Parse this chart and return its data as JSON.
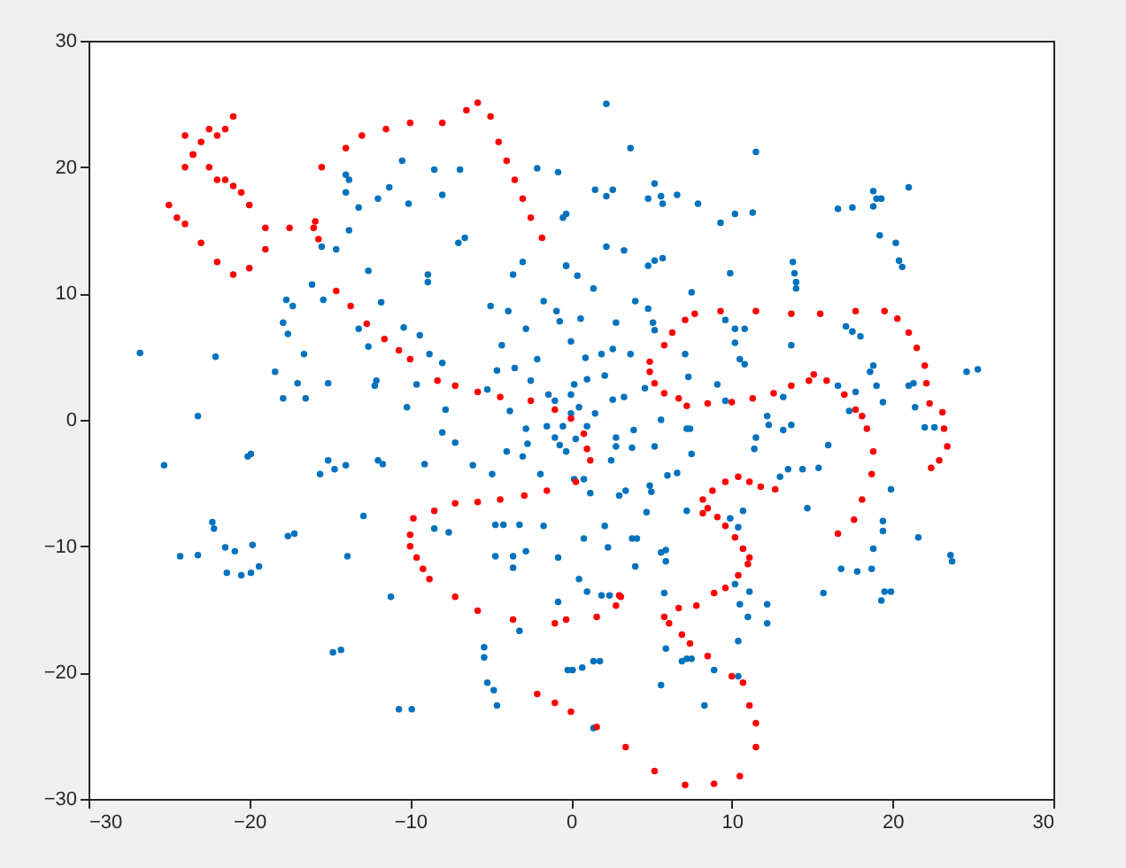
{
  "chart_data": {
    "type": "scatter",
    "xlim": [
      -30,
      30
    ],
    "ylim": [
      -30,
      30
    ],
    "xticks": [
      -30,
      -20,
      -10,
      0,
      10,
      20,
      30
    ],
    "yticks": [
      -30,
      -20,
      -10,
      0,
      10,
      20,
      30
    ],
    "grid": false,
    "marker": "circle",
    "series": [
      {
        "color": "#0072bd",
        "x": [
          -26.8,
          -25.3,
          -23.2,
          -22.1,
          -20.1,
          -19.9,
          -22.3,
          -22.2,
          -21.5,
          -24.3,
          -23.2,
          -20.9,
          -19.8,
          -21.4,
          -20.5,
          -19.9,
          -19.4,
          -17.6,
          -17.2,
          -15.6,
          -15.1,
          -14.7,
          -14,
          -12,
          -11.7,
          -12.9,
          -13.9,
          -11.2,
          -14.8,
          -14.3,
          -10.7,
          -9.9,
          -5.4,
          -5.4,
          -5.2,
          -4.8,
          -4.6,
          -9.1,
          -8,
          -7.2,
          -6.1,
          -4.9,
          -4,
          -3,
          -1.9,
          -4.7,
          -4.2,
          -3.2,
          -4.7,
          -3.6,
          -2.8,
          -1.7,
          -0.8,
          -0.8,
          -3.2,
          -8.5,
          -7.6,
          -3.6,
          -0.2,
          -14,
          -13.8,
          -14,
          -12,
          -11.3,
          -10.5,
          -8.5,
          -6.9,
          -8,
          -10.1,
          -13.2,
          -13.8,
          -15.5,
          -14.6,
          -12.6,
          -8.9,
          -8.9,
          -6.6,
          -7,
          -3,
          -3.6,
          -0.3,
          -2.1,
          -0.8,
          -0.5,
          -16.1,
          -17.7,
          -17.3,
          -17.9,
          -17.6,
          -16.6,
          -15.4,
          -18.4,
          -17,
          -16.5,
          -17.9,
          -15.1,
          -13.2,
          -12.6,
          -11.8,
          -10.4,
          -9.4,
          -8.8,
          -8,
          -12.1,
          -12.2,
          -10.2,
          -9.6,
          -7.8,
          -5,
          -3.9,
          -2.8,
          -4.3,
          -0.9,
          -0.7,
          -1.7,
          -2.1,
          -2.5,
          -1.4,
          -3.5,
          -4.6,
          -5.2,
          -3.8,
          2.2,
          3.7,
          11.5,
          1.5,
          2.2,
          2.6,
          5.2,
          4.8,
          5.6,
          5.7,
          6.6,
          7.9,
          9.3,
          10.2,
          11.3,
          16.6,
          17.5,
          18.8,
          19,
          19.3,
          18.8,
          21,
          19.2,
          20.2,
          20.4,
          20.6,
          13.8,
          13.9,
          14,
          14,
          2.2,
          3.3,
          0.4,
          4.8,
          5.2,
          5.7,
          1.4,
          7.5,
          9.9,
          4,
          4.8,
          2.8,
          5.1,
          5.2,
          0,
          0.6,
          9.6,
          10.2,
          10.8,
          10.2,
          10.5,
          10.8,
          13.7,
          17.1,
          17.5,
          18,
          18.8,
          18.6,
          19,
          21,
          21.3,
          24.6,
          25.3,
          21.4,
          19.4,
          16.6,
          17.7,
          0.9,
          1.9,
          2.6,
          3.7,
          7.1,
          7.3,
          0.2,
          1,
          2.1,
          3.3,
          2.6,
          4.6,
          9.1,
          9.6,
          13.2,
          12.2,
          17.3,
          -0.3,
          -0.3,
          7.2,
          7.4,
          12.3,
          13.2,
          13.7,
          11.5,
          11.4,
          16,
          22,
          22.6,
          7.5,
          13.5,
          14.4,
          15.4,
          13,
          19.9,
          14.7,
          19.4,
          19.4,
          18.8,
          21.6,
          23.6,
          23.7,
          16.8,
          17.8,
          18.7,
          15.7,
          19.5,
          19.9,
          19.3,
          6.6,
          6,
          4.9,
          5,
          3.4,
          3,
          4.7,
          7.2,
          9.9,
          10.7,
          10.4,
          3.8,
          4.1,
          5.6,
          5.9,
          5.9,
          4,
          0.5,
          1,
          1.9,
          2.4,
          5.8,
          10.2,
          11.1,
          10.5,
          12.2,
          11,
          12.2,
          10.4,
          5.9,
          6.9,
          7.2,
          7.5,
          8.9,
          10.4,
          5.6,
          8.3,
          1.4,
          1.8,
          0.7,
          0.1,
          1.4,
          2.1,
          2.3,
          0.8,
          2.8,
          2.8,
          3.8,
          5.2,
          2.5,
          3.9,
          5.6,
          0.8,
          0.2,
          1.2,
          0,
          -0.5,
          0.5,
          -1,
          1,
          0.3,
          -0.7,
          1.5,
          -1.5,
          0,
          -2.8,
          -1,
          -0.3,
          -2.7
        ],
        "values": [
          5.3,
          -3.6,
          0.3,
          5,
          -2.9,
          -2.7,
          -8.1,
          -8.6,
          -10.1,
          -10.8,
          -10.7,
          -10.4,
          -9.9,
          -12.1,
          -12.3,
          -12.1,
          -11.6,
          -9.2,
          -9,
          -4.3,
          -3.2,
          -3.9,
          -3.6,
          -3.2,
          -3.5,
          -7.6,
          -10.8,
          -14,
          -18.4,
          -18.2,
          -22.9,
          -22.9,
          -18,
          -18.8,
          -20.8,
          -21.4,
          -22.6,
          -3.5,
          -1,
          -1.8,
          -3.6,
          -4.3,
          -2.5,
          -2.9,
          -4.3,
          -8.3,
          -8.3,
          -8.3,
          -10.8,
          -10.8,
          -10.4,
          -8.4,
          -10.9,
          -14.4,
          -16.7,
          -8.6,
          -8.9,
          -11.7,
          -19.8,
          19.4,
          19,
          18,
          17.5,
          18.4,
          20.5,
          19.8,
          19.8,
          17.8,
          17.1,
          16.8,
          15,
          13.7,
          13.5,
          11.8,
          11.5,
          10.9,
          14.4,
          14,
          12.5,
          11.5,
          12.2,
          19.9,
          19.6,
          16,
          10.7,
          9.5,
          9,
          7.7,
          6.8,
          5.2,
          9.5,
          3.8,
          2.9,
          1.7,
          1.7,
          2.9,
          7.2,
          5.8,
          9.3,
          7.3,
          6.7,
          5.2,
          4.5,
          3.1,
          2.7,
          1,
          2.8,
          0.8,
          9,
          8.6,
          7.2,
          5.9,
          8.6,
          7.8,
          9.4,
          4.8,
          3.1,
          2,
          4.1,
          3.9,
          2.4,
          0.7,
          25,
          21.5,
          21.2,
          18.2,
          17.7,
          18.2,
          18.7,
          17.5,
          17.7,
          17.1,
          17.8,
          17.1,
          15.6,
          16.3,
          16.4,
          16.7,
          16.8,
          18.1,
          17.5,
          17.5,
          16.9,
          18.4,
          14.6,
          14,
          12.6,
          12.1,
          12.5,
          11.6,
          10.9,
          10.4,
          13.7,
          13.4,
          11.4,
          12.2,
          12.6,
          12.8,
          10.4,
          10.1,
          11.6,
          9.4,
          8.8,
          7.7,
          7.7,
          7.1,
          6.2,
          8,
          7.9,
          7.2,
          7.2,
          6.1,
          4.8,
          4.4,
          5.9,
          7.4,
          7,
          6.6,
          4.3,
          3.8,
          2.7,
          2.7,
          2.9,
          3.8,
          4,
          1,
          1.4,
          2.7,
          2.2,
          4.9,
          5.2,
          5.6,
          5.2,
          5.2,
          3.4,
          2.8,
          3.2,
          3.5,
          1.8,
          1.6,
          2.5,
          2.8,
          1.5,
          1.8,
          0.3,
          0.7,
          16.3,
          12.2,
          -0.7,
          -0.7,
          -0.4,
          -0.8,
          -0.4,
          -1.4,
          -2.3,
          -2,
          -0.6,
          -0.6,
          -2.7,
          -3.9,
          -3.9,
          -3.8,
          -4.5,
          -5.5,
          -7,
          -8,
          -8.8,
          -10.2,
          -9.3,
          -10.7,
          -11.2,
          -11.8,
          -12,
          -11.8,
          -13.7,
          -13.6,
          -13.6,
          -14.3,
          -4.2,
          -4.4,
          -5.2,
          -5.7,
          -5.6,
          -6,
          -7.3,
          -7.2,
          -7.8,
          -7.2,
          -8.5,
          -9.4,
          -9.4,
          -10.5,
          -10.3,
          -11.2,
          -11.6,
          -12.6,
          -13.6,
          -13.9,
          -13.9,
          -13.7,
          -13,
          -13.6,
          -14.6,
          -14.6,
          -15.6,
          -16.1,
          -17.5,
          -18.1,
          -19.1,
          -18.9,
          -18.9,
          -19.8,
          -20.3,
          -21,
          -22.6,
          -19.1,
          -19.1,
          -19.6,
          -19.8,
          -24.4,
          -8.4,
          -10.1,
          -9.4,
          -1.4,
          -2.1,
          -2.2,
          -2.1,
          -3.2,
          -0.8,
          0,
          -4.7,
          -4.7,
          -5.8,
          0.5,
          -0.5,
          1,
          1.5,
          -0.5,
          -1.5,
          -2,
          0.5,
          -0.5,
          2,
          -0.7,
          -1.4,
          -2.5,
          -1.9
        ]
      },
      {
        "color": "#ff0000",
        "x": [
          -21,
          -21.5,
          -22,
          -22.5,
          -23,
          -23.5,
          -24,
          -25,
          -24.5,
          -24,
          -23,
          -22,
          -21,
          -20,
          -19,
          -19,
          -17.5,
          -16,
          -15.9,
          -15.7,
          -24,
          -23.5,
          -22.5,
          -21.5,
          -20.5,
          -20,
          -22,
          -21,
          -15.5,
          -14,
          -13,
          -11.5,
          -10,
          -8,
          -6.5,
          -5.8,
          -5,
          -4.5,
          -4,
          -3.5,
          -3,
          -2.5,
          -1.8,
          -14.6,
          -13.7,
          -12.7,
          -11.6,
          -10.7,
          -10,
          -8.3,
          -7.2,
          -5.8,
          -4.4,
          -2.5,
          -1,
          0,
          0.8,
          1,
          1.2,
          0.3,
          -1.5,
          -2.9,
          -4.4,
          -5.8,
          -7.2,
          -8.5,
          -9.8,
          -10,
          -10,
          -9.6,
          -9.2,
          -8.8,
          -7.2,
          -5.8,
          -3.6,
          -1,
          -0.3,
          1.6,
          2.8,
          3,
          3.1,
          -2.1,
          -1,
          0,
          1.6,
          3.4,
          5.2,
          7.1,
          8.9,
          10.5,
          11.5,
          11.5,
          11.1,
          10.7,
          10,
          8.5,
          7.4,
          6.9,
          6.1,
          5.8,
          6.7,
          7.8,
          8.9,
          9.6,
          10.4,
          11,
          11.1,
          10.7,
          10.2,
          9.6,
          9.1,
          8.5,
          8.2,
          8.2,
          8.8,
          9.6,
          10.4,
          11.1,
          11.8,
          12.7,
          16.6,
          17.6,
          18.1,
          18.7,
          18.8,
          18.4,
          18.1,
          17.7,
          17,
          15.9,
          15.1,
          14.8,
          13.7,
          12.6,
          11.3,
          10,
          8.5,
          7.2,
          6.7,
          5.8,
          5.2,
          4.9,
          4.9,
          5.8,
          6.3,
          7.1,
          7.7,
          9.3,
          11.5,
          13.7,
          15.5,
          17.7,
          19.5,
          20.3,
          21,
          21.5,
          22,
          22.1,
          22.3,
          23.1,
          23.2,
          23.4,
          22.9,
          22.4
        ],
        "values": [
          24,
          23,
          22.5,
          23,
          22,
          21,
          20,
          17,
          16,
          15.5,
          14,
          12.5,
          11.5,
          12,
          13.5,
          15.2,
          15.2,
          15.2,
          15.7,
          14.3,
          22.5,
          21,
          20,
          19,
          18,
          17,
          19,
          18.5,
          20,
          21.5,
          22.5,
          23,
          23.5,
          23.5,
          24.5,
          25.1,
          24,
          22,
          20.5,
          19,
          17.5,
          16,
          14.4,
          10.2,
          9,
          7.6,
          6.4,
          5.5,
          4.8,
          3.1,
          2.7,
          2.2,
          1.8,
          1.5,
          0.8,
          0.1,
          -1.1,
          -2.3,
          -3.2,
          -4.9,
          -5.6,
          -6,
          -6.3,
          -6.5,
          -6.6,
          -7.2,
          -7.8,
          -9.1,
          -10,
          -10.9,
          -11.8,
          -12.6,
          -14,
          -15.1,
          -15.8,
          -16.1,
          -15.8,
          -15.6,
          -14.7,
          -13.9,
          -14,
          -21.7,
          -22.4,
          -23.1,
          -24.3,
          -25.9,
          -27.8,
          -28.9,
          -28.8,
          -28.2,
          -25.9,
          -24,
          -22.6,
          -20.8,
          -20.3,
          -18.7,
          -17.7,
          -17,
          -16.1,
          -15.6,
          -14.9,
          -14.7,
          -13.7,
          -13.3,
          -12.3,
          -11.4,
          -10.9,
          -10.2,
          -9.3,
          -8.4,
          -7.7,
          -7,
          -6.3,
          -7.4,
          -5.6,
          -4.9,
          -4.5,
          -4.9,
          -5.3,
          -5.5,
          -9,
          -7.9,
          -6.3,
          -4.3,
          -2.5,
          -0.7,
          0.3,
          0.8,
          2,
          3.1,
          3.6,
          3.1,
          2.7,
          2.1,
          1.7,
          1.4,
          1.3,
          1.1,
          1.7,
          2.1,
          2.9,
          3.8,
          4.6,
          5.9,
          6.9,
          7.9,
          8.4,
          8.6,
          8.6,
          8.4,
          8.4,
          8.6,
          8.6,
          8,
          6.9,
          5.7,
          4.3,
          2.9,
          1.3,
          0.6,
          -0.7,
          -2.1,
          -3.2,
          -3.8
        ]
      }
    ]
  }
}
